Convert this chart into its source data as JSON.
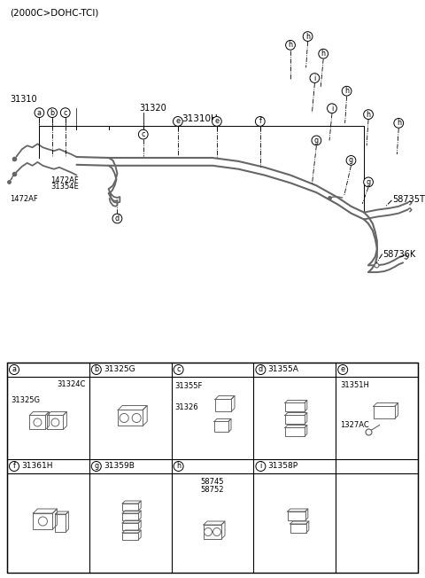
{
  "bg_color": "#ffffff",
  "line_color": "#666666",
  "text_color": "#000000",
  "title": "(2000C>DOHC-TCI)",
  "label_31310H": "31310H",
  "label_31310": "31310",
  "label_31320": "31320",
  "label_58736K": "58736K",
  "label_58735T": "58735T",
  "label_1472AF_a": "1472AF",
  "label_1472AF_b": "1472AF",
  "label_31354E": "31354E",
  "row1_labels": [
    "a",
    "b",
    "c",
    "d",
    "e"
  ],
  "row1_parts": [
    "",
    "31325G",
    "",
    "31355A",
    ""
  ],
  "row2_labels": [
    "f",
    "g",
    "h",
    "i"
  ],
  "row2_parts": [
    "31361H",
    "31359B",
    "",
    "31358P"
  ],
  "cell_a_sub": [
    "31324C",
    "31325G"
  ],
  "cell_c_sub": [
    "31355F",
    "31326"
  ],
  "cell_e_sub": [
    "31351H",
    "1327AC"
  ],
  "cell_h_sub": [
    "58745",
    "58752"
  ]
}
